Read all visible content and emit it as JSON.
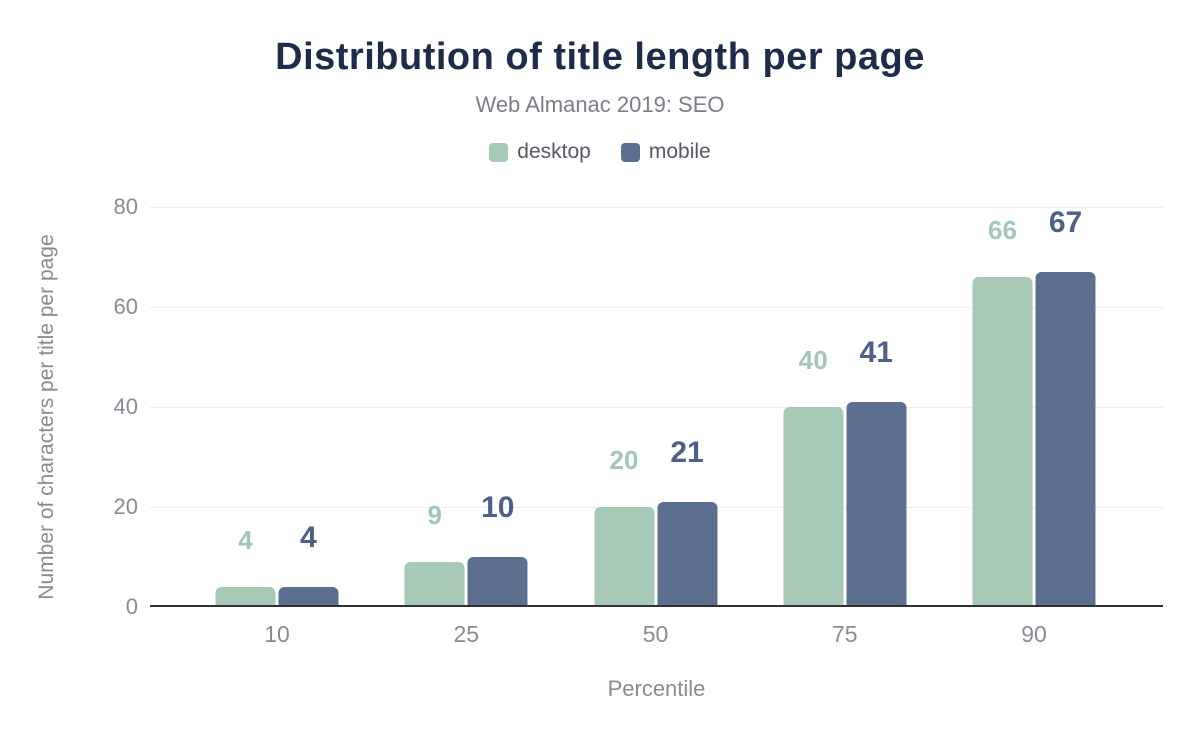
{
  "chart_data": {
    "type": "bar",
    "title": "Distribution of title length per page",
    "subtitle": "Web Almanac 2019: SEO",
    "xlabel": "Percentile",
    "ylabel": "Number of characters per title per page",
    "categories": [
      "10",
      "25",
      "50",
      "75",
      "90"
    ],
    "series": [
      {
        "name": "desktop",
        "color": "#a6cab5",
        "label_color": "#a2c8b2",
        "values": [
          4,
          9,
          20,
          40,
          66
        ]
      },
      {
        "name": "mobile",
        "color": "#5c6f8e",
        "label_color": "#4c6185",
        "values": [
          4,
          10,
          21,
          41,
          67
        ]
      }
    ],
    "ylim": [
      0,
      80
    ],
    "ytick_step": 20,
    "grid": true,
    "legend_position": "top"
  },
  "style": {
    "title_color": "#1e2b49",
    "subtitle_color": "#7b7f87",
    "tick_color": "#878c94",
    "legend_text_color": "#555a62",
    "grid_color": "#ededed",
    "axis_color": "#2e3138",
    "background": "#ffffff"
  }
}
